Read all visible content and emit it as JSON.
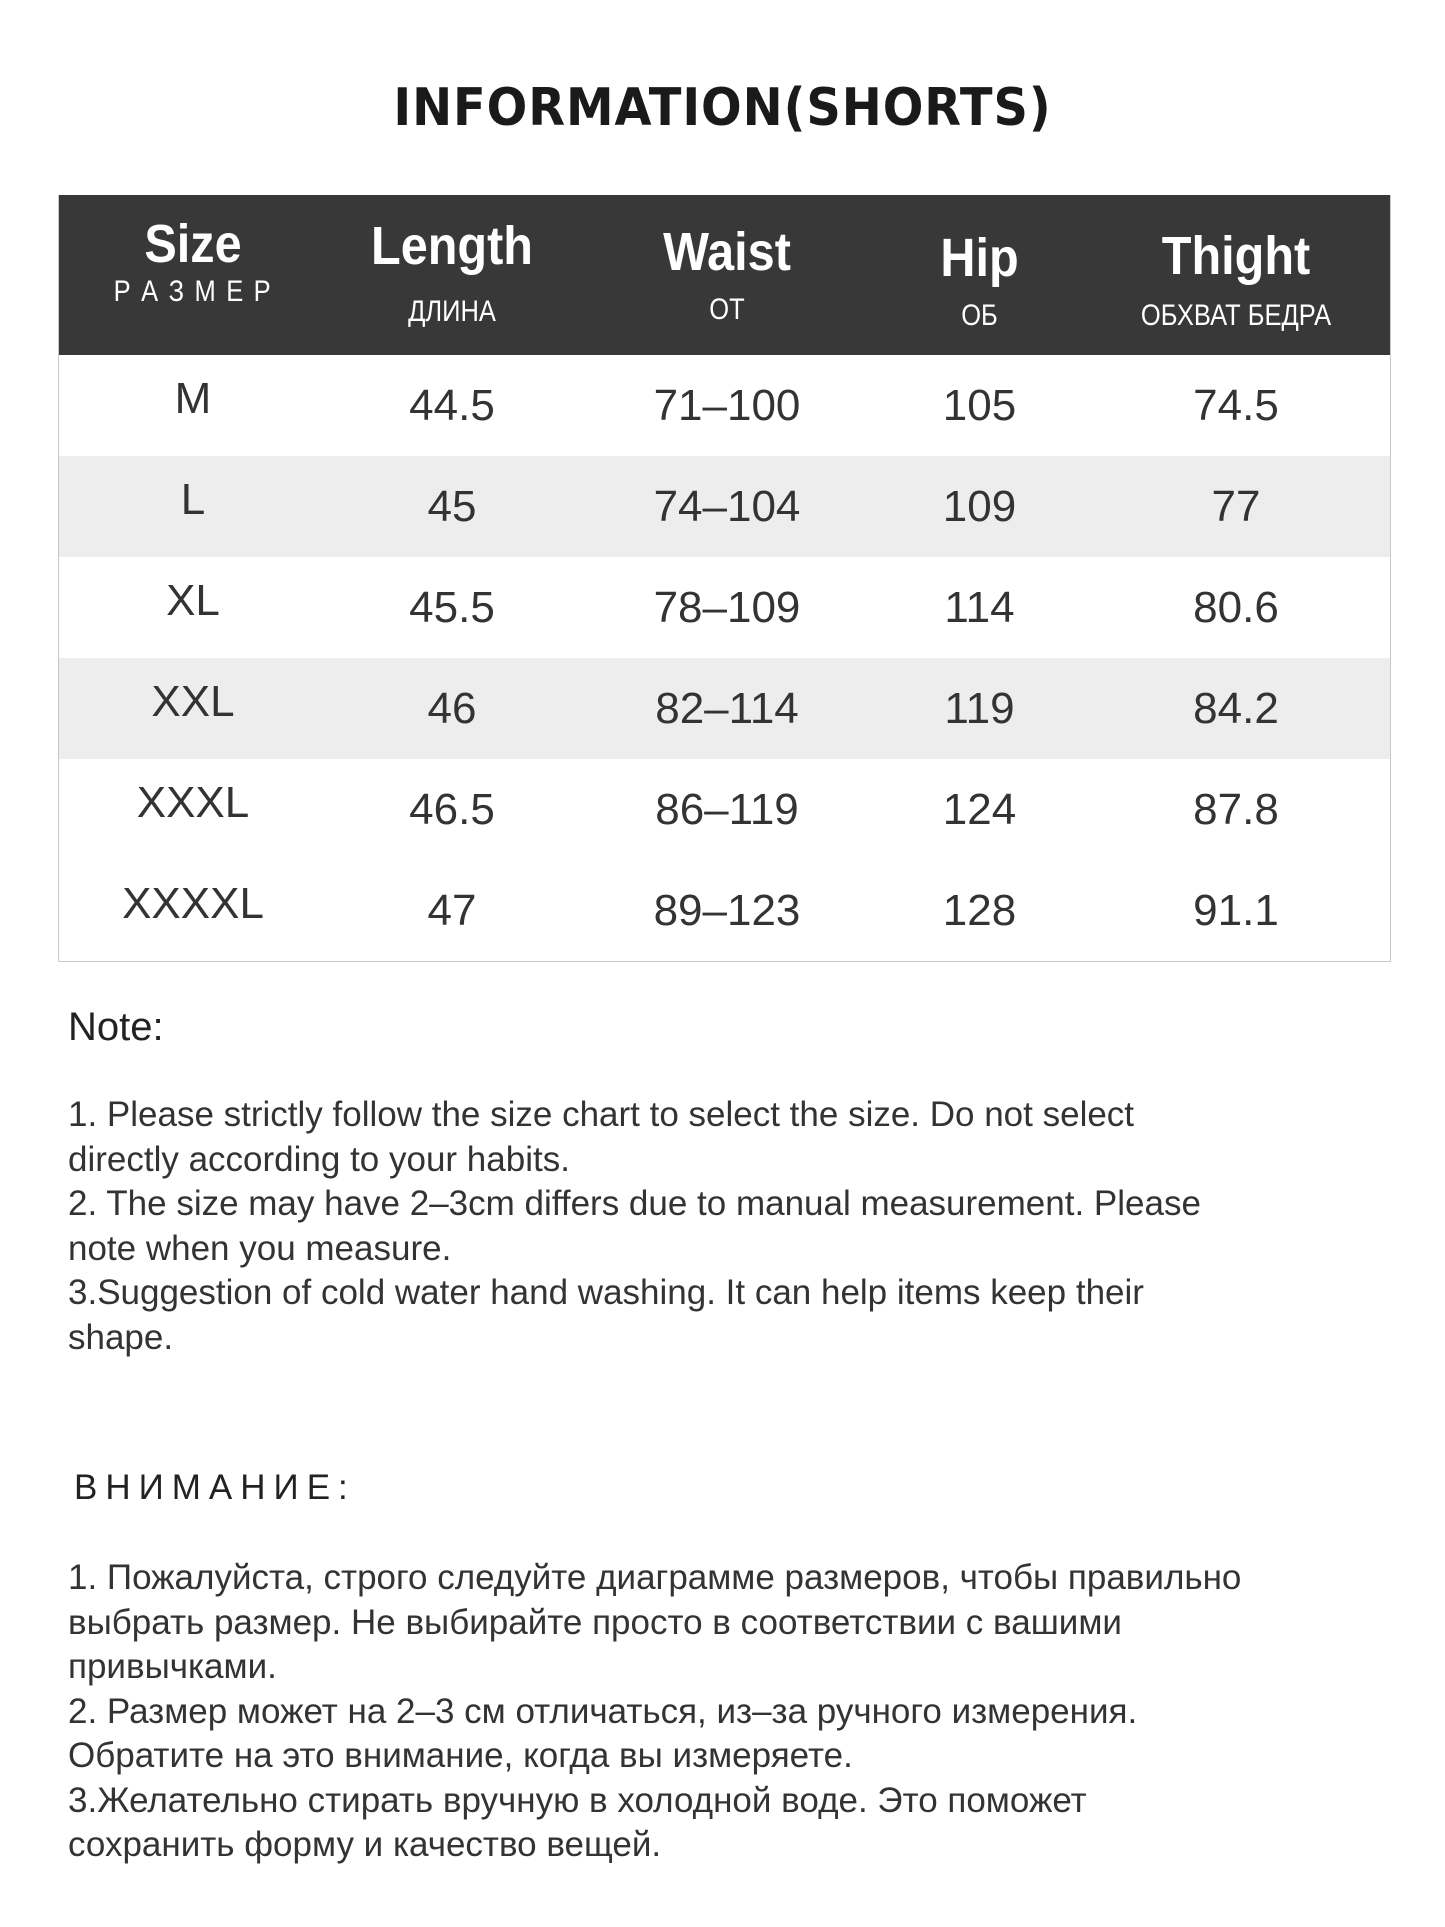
{
  "title": "INFORMATION(SHORTS)",
  "table": {
    "headers": [
      {
        "en": "Size",
        "ru": "Р А З М Е Р"
      },
      {
        "en": "Length",
        "ru": "ДЛИНА"
      },
      {
        "en": "Waist",
        "ru": "ОТ"
      },
      {
        "en": "Hip",
        "ru": "ОБ"
      },
      {
        "en": "Thight",
        "ru": "ОБХВАТ БЕДРА"
      }
    ],
    "rows": [
      [
        "M",
        "44.5",
        "71–100",
        "105",
        "74.5"
      ],
      [
        "L",
        "45",
        "74–104",
        "109",
        "77"
      ],
      [
        "XL",
        "45.5",
        "78–109",
        "114",
        "80.6"
      ],
      [
        "XXL",
        "46",
        "82–114",
        "119",
        "84.2"
      ],
      [
        "XXXL",
        "46.5",
        "86–119",
        "124",
        "87.8"
      ],
      [
        "XXXXL",
        "47",
        "89–123",
        "128",
        "91.1"
      ]
    ]
  },
  "note": {
    "heading": "Note:",
    "lines": [
      "1. Please strictly follow the size chart  to select the size. Do not select",
      "directly according to your habits.",
      "2. The size may have 2–3cm differs due to manual measurement. Please",
      "note when you measure.",
      "3.Suggestion of cold water hand washing. It can help items keep their",
      "shape."
    ]
  },
  "note_ru": {
    "heading": "ВНИМАНИЕ:",
    "lines": [
      "1. Пожалуйста, строго следуйте диаграмме размеров, чтобы правильно",
      "выбрать размер. Не выбирайте просто в соответствии с вашими",
      "привычками.",
      "2. Размер может на 2–3 см отличаться, из–за ручного измерения.",
      "Обратите на это внимание, когда вы измеряете.",
      "3.Желательно стирать вручную в холодной воде. Это поможет",
      "сохранить форму и качество вещей."
    ]
  },
  "colors": {
    "header_bg": "#383838",
    "row_alt": "#ededed"
  }
}
